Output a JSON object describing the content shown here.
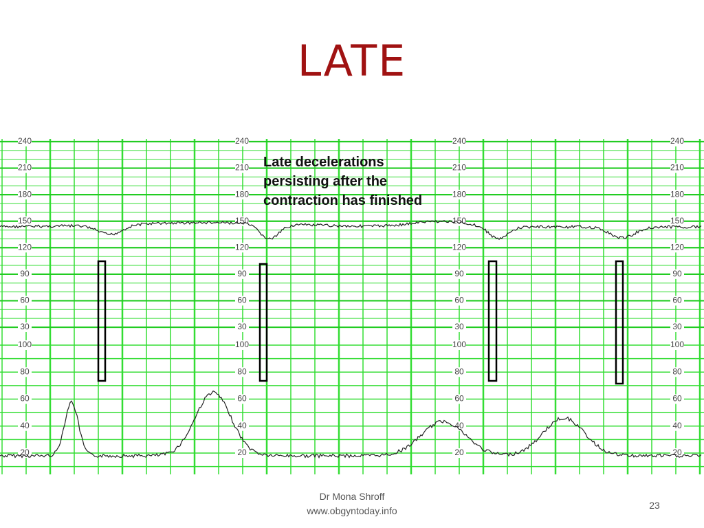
{
  "header": {
    "title": "LATE"
  },
  "annotation": {
    "lines": [
      "Late decelerations",
      "persisting after the",
      "contraction has finished"
    ]
  },
  "strip": {
    "fhr_scale": [
      "240",
      "210",
      "180",
      "150",
      "120",
      "90",
      "60",
      "30"
    ],
    "ua_scale": [
      "100",
      "80",
      "60",
      "40",
      "20"
    ]
  },
  "footer": {
    "author": "Dr Mona Shroff",
    "website": "www.obgyntoday.info",
    "page": "23"
  }
}
